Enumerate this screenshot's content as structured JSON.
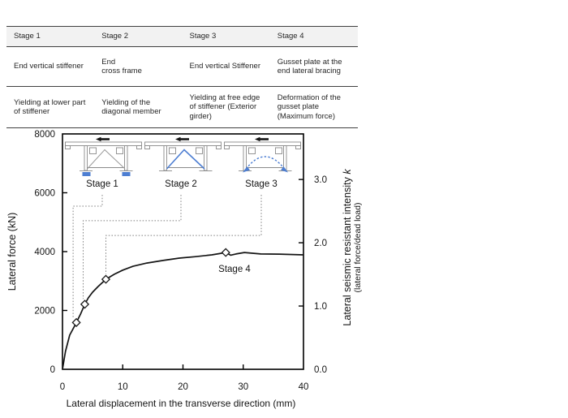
{
  "table": {
    "headers": [
      "Stage 1",
      "Stage 2",
      "Stage 3",
      "Stage 4"
    ],
    "row1": [
      "End vertical stiffener",
      "End\ncross frame",
      "End vertical Stiffener",
      "Gusset plate at the end lateral bracing"
    ],
    "row2": [
      "Yielding at lower part of stiffener",
      "Yielding of the diagonal member",
      "Yielding at free edge of stiffener (Exterior girder)",
      "Deformation of the gusset plate (Maximum force)"
    ]
  },
  "insets": [
    {
      "label": "Stage 1",
      "highlight": "lower part of end vertical stiffener (blue bearings)"
    },
    {
      "label": "Stage 2",
      "highlight": "diagonal members of end cross frame (blue)"
    },
    {
      "label": "Stage 3",
      "highlight": "buckled dashed shape with arrows at stiffener bases (blue)"
    }
  ],
  "colors": {
    "accent_blue": "#4d7ed2",
    "diagram_gray": "#8a8a8a",
    "leader_gray": "#7f7f7f",
    "curve_black": "#141414",
    "table_header_bg": "#f2f2f2"
  },
  "chart_data": {
    "type": "line",
    "title": "",
    "xlabel": "Lateral displacement in the transverse direction (mm)",
    "ylabel_left": "Lateral force (kN)",
    "ylabel_right_main": "Lateral seismic resistant intensity ",
    "ylabel_right_k": "k",
    "ylabel_right_sub": "(lateral force/dead load)",
    "xlim": [
      0,
      40
    ],
    "ylim_left": [
      0,
      8000
    ],
    "ylim_right": [
      0,
      3.72
    ],
    "x_ticks": [
      "0",
      "10",
      "20",
      "30",
      "40"
    ],
    "y_left_ticks": [
      "0",
      "2000",
      "4000",
      "6000",
      "8000"
    ],
    "y_right_ticks": [
      "0.0",
      "1.0",
      "2.0",
      "3.0"
    ],
    "grid": false,
    "legend": "none",
    "curve": {
      "name": "lateral force vs lateral displacement (pushover response)",
      "x": [
        0,
        0.5,
        1.2,
        1.9,
        2.3,
        3.0,
        3.7,
        4.3,
        5.0,
        5.9,
        7.2,
        8.6,
        10.0,
        11.7,
        14.0,
        16.7,
        19.4,
        22.1,
        24.8,
        27.1,
        27.9,
        28.8,
        30.2,
        32.9,
        36.0,
        40.0
      ],
      "y": [
        0,
        610,
        1160,
        1430,
        1590,
        1880,
        2210,
        2430,
        2620,
        2810,
        3060,
        3230,
        3370,
        3500,
        3610,
        3700,
        3780,
        3830,
        3890,
        3970,
        3880,
        3920,
        3970,
        3920,
        3915,
        3890
      ]
    },
    "markers": [
      {
        "label": "Stage 1",
        "x": 2.3,
        "y": 1590
      },
      {
        "label": "Stage 2",
        "x": 3.7,
        "y": 2210
      },
      {
        "label": "Stage 3",
        "x": 7.2,
        "y": 3060
      },
      {
        "label": "Stage 4",
        "x": 27.1,
        "y": 3970
      }
    ],
    "stage4_label": "Stage 4",
    "leader_elbow_y_kn": [
      5545,
      5050,
      4550
    ]
  }
}
